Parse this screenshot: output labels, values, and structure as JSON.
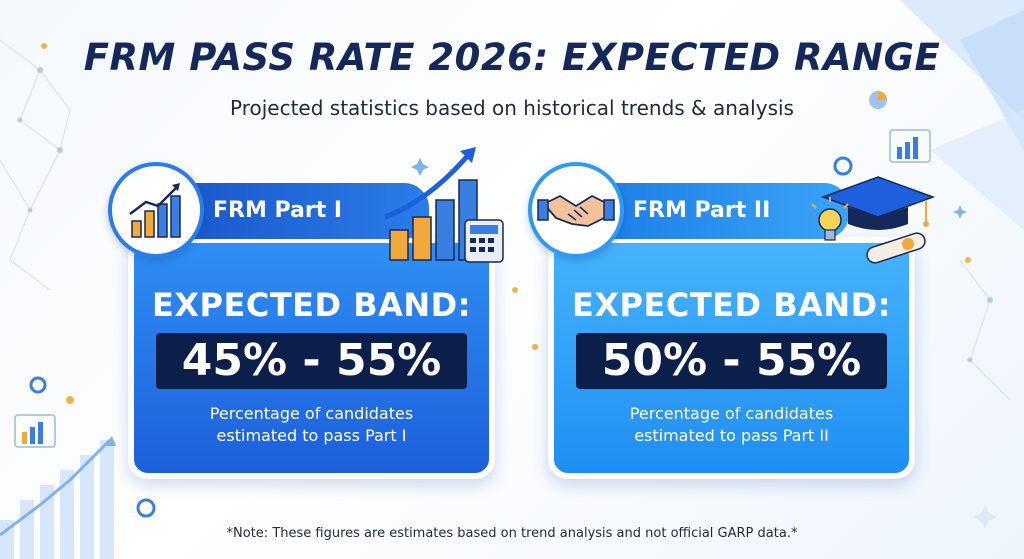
{
  "title": "FRM PASS RATE 2026: EXPECTED RANGE",
  "subtitle": "Projected statistics based on historical trends & analysis",
  "cards": [
    {
      "label": "FRM Part I",
      "band_label": "EXPECTED BAND:",
      "range": "45% - 55%",
      "description_line1": "Percentage of candidates",
      "description_line2": "estimated to pass Part I",
      "icon": "bar-chart-icon"
    },
    {
      "label": "FRM Part II",
      "band_label": "EXPECTED BAND:",
      "range": "50% - 55%",
      "description_line1": "Percentage of candidates",
      "description_line2": "estimated to pass Part II",
      "icon": "handshake-icon"
    }
  ],
  "note": "*Note: These figures are estimates based on trend analysis and not official GARP data.*",
  "colors": {
    "title": "#14295a",
    "card1": "#1d5fdc",
    "card2": "#1f8ef3",
    "range_bg": "#0b1f4a",
    "accent_gold": "#f2a93b"
  }
}
